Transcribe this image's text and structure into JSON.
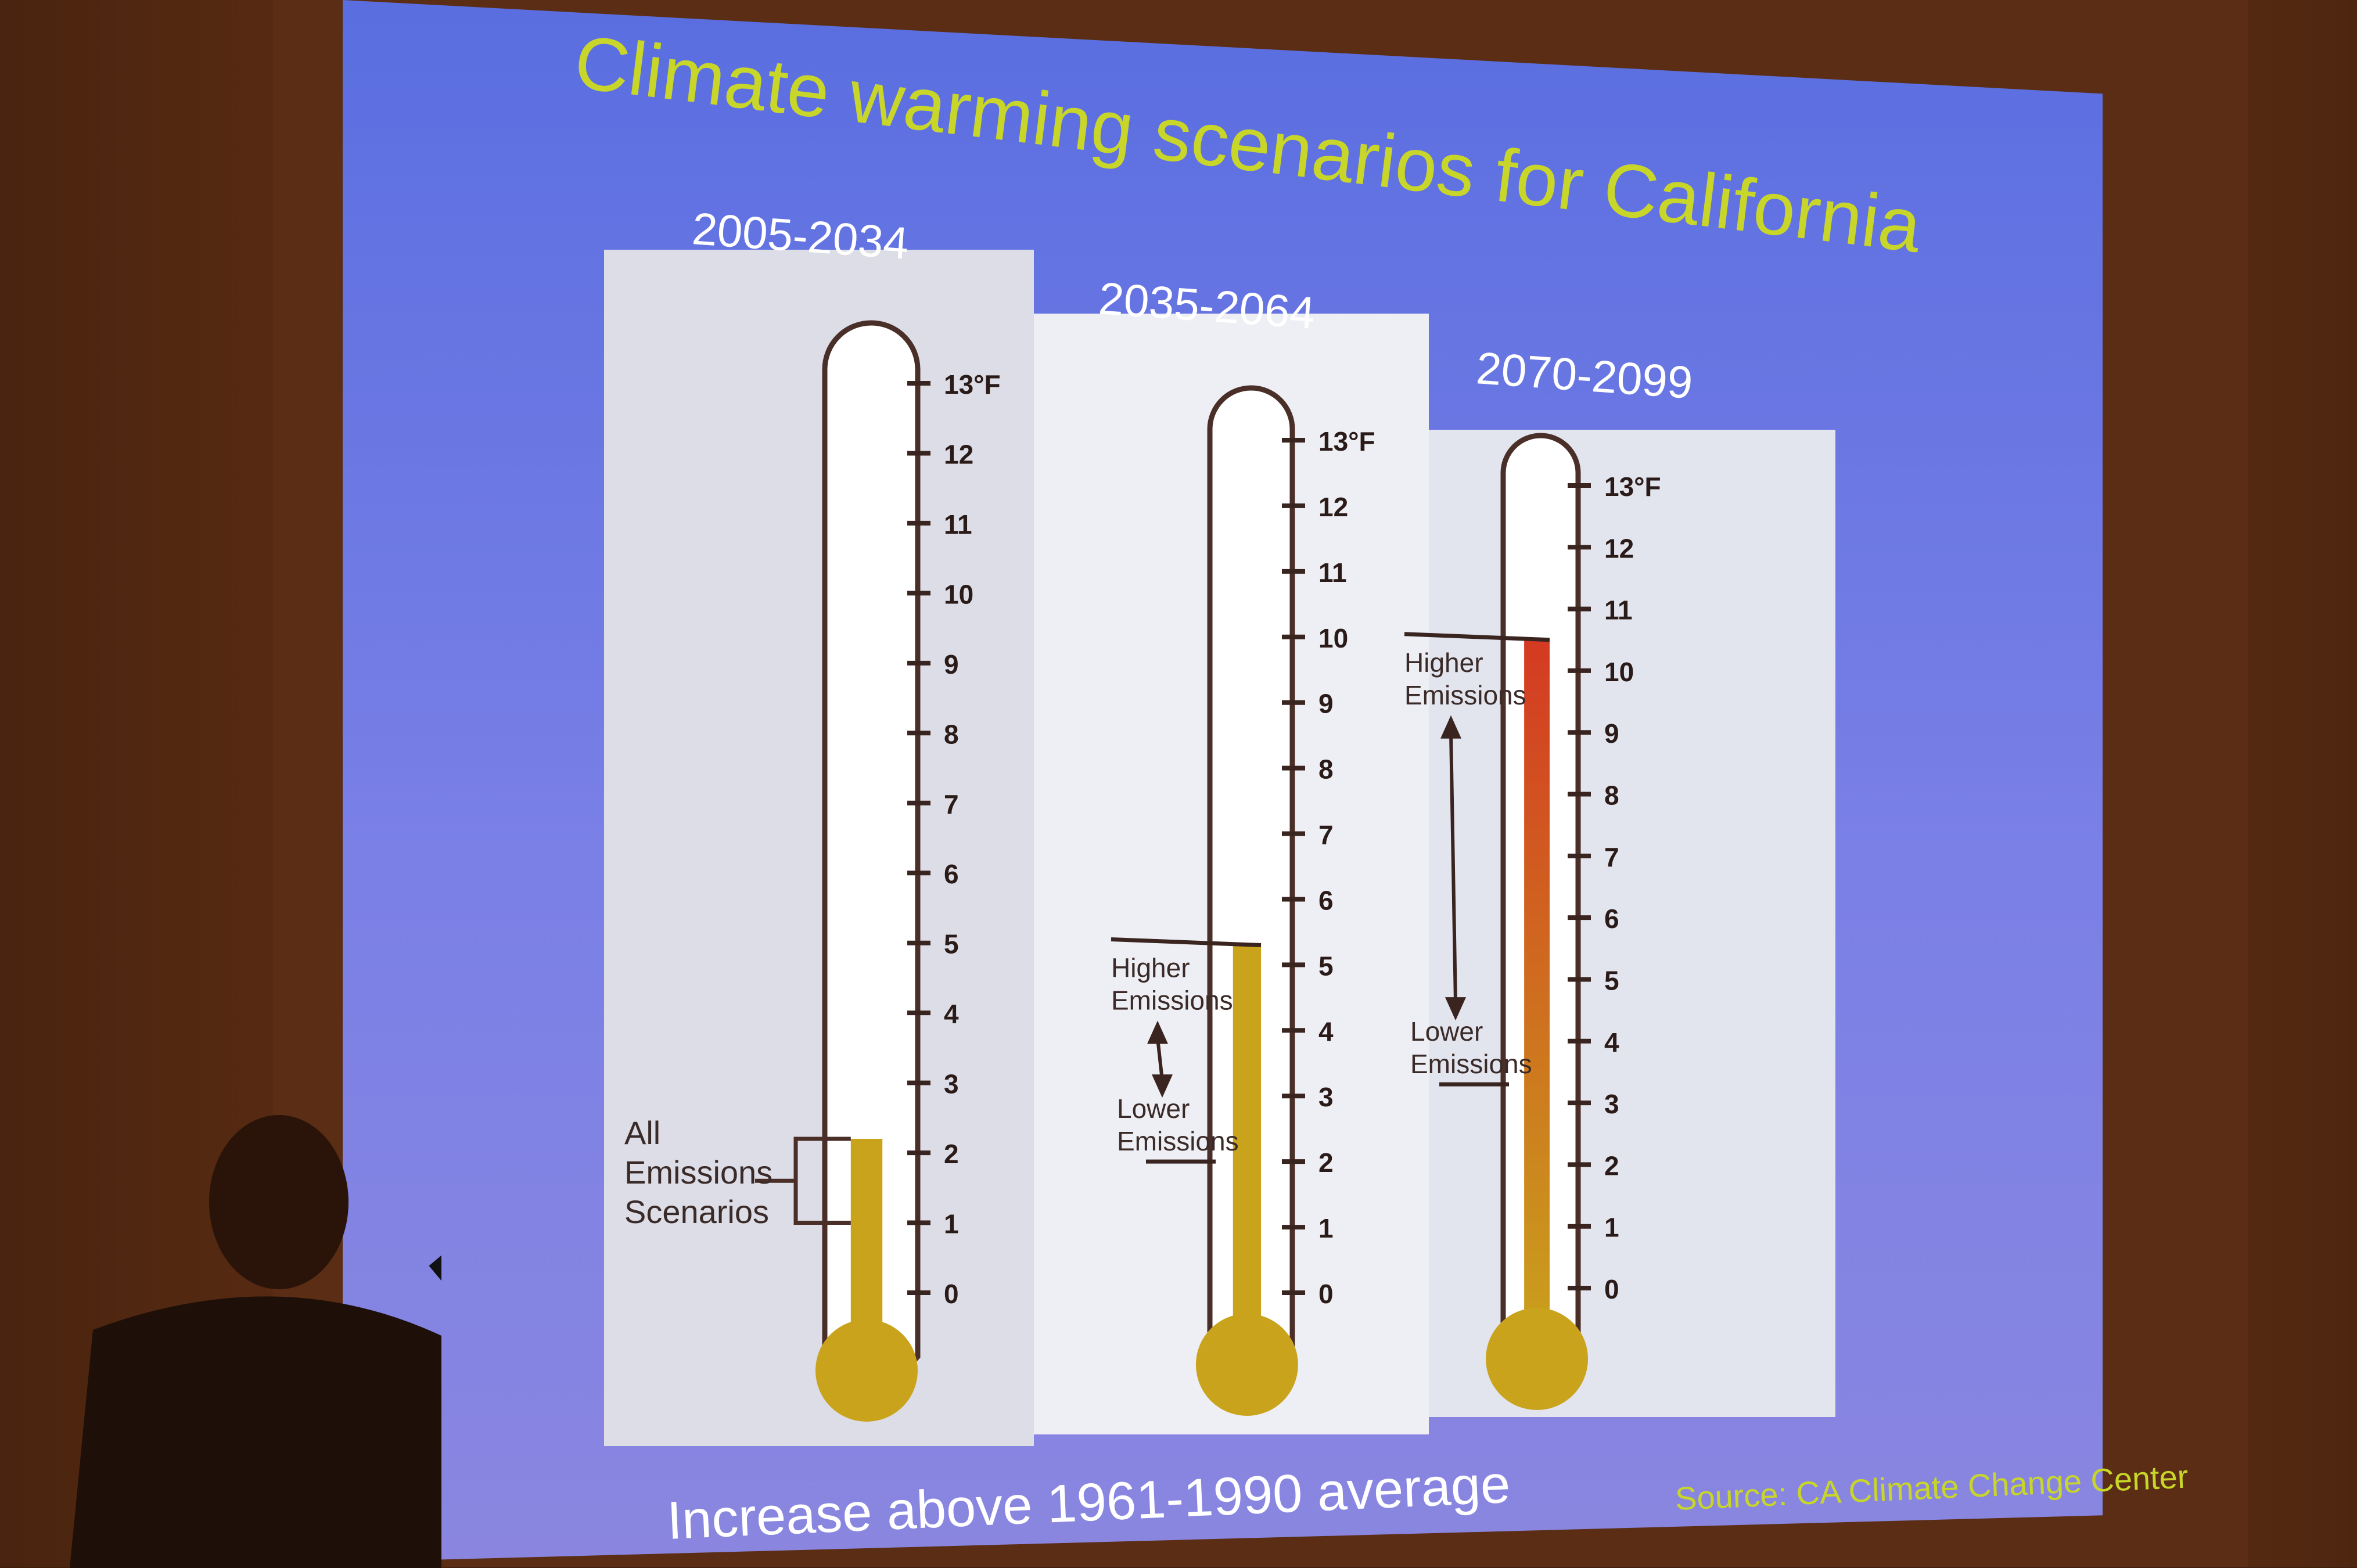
{
  "slide": {
    "title": "Climate warming scenarios for California",
    "caption": "Increase above 1961-1990 average",
    "source": "Source: CA Climate Change Center"
  },
  "colors": {
    "title": "#c8d62a",
    "fill_gold": "#c9a31c",
    "fill_red": "#d43a22",
    "panel": "#e6e8f0",
    "outline": "#4a2e28"
  },
  "chart_data": {
    "type": "bar",
    "title": "Climate warming scenarios for California",
    "ylabel": "Increase above 1961-1990 average (°F)",
    "ylim": [
      0,
      13
    ],
    "ticks": [
      "0",
      "1",
      "2",
      "3",
      "4",
      "5",
      "6",
      "7",
      "8",
      "9",
      "10",
      "11",
      "12",
      "13°F"
    ],
    "panels": [
      {
        "period": "2005-2034",
        "low": 1.0,
        "high": 2.2,
        "labels": {
          "range": [
            "All",
            "Emissions",
            "Scenarios"
          ]
        }
      },
      {
        "period": "2035-2064",
        "low": 2.0,
        "high": 5.3,
        "labels": {
          "higher": [
            "Higher",
            "Emissions"
          ],
          "lower": [
            "Lower",
            "Emissions"
          ]
        }
      },
      {
        "period": "2070-2099",
        "low": 3.3,
        "high": 10.5,
        "labels": {
          "higher": [
            "Higher",
            "Emissions"
          ],
          "lower": [
            "Lower",
            "Emissions"
          ]
        }
      }
    ]
  }
}
